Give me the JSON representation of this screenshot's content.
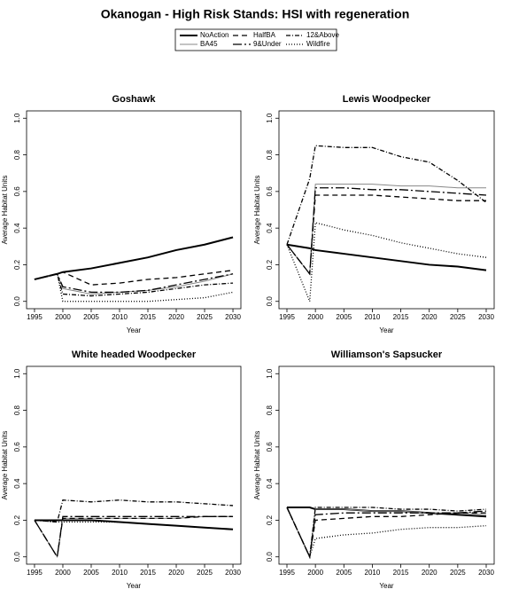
{
  "title": "Okanogan  - High Risk Stands: HSI with regeneration",
  "chart_data": [
    {
      "type": "line",
      "title": "Goshawk",
      "xlabel": "Year",
      "ylabel": "Average Habitat Units",
      "x": [
        1995,
        1999,
        2000,
        2005,
        2010,
        2015,
        2020,
        2025,
        2030
      ],
      "xlim": [
        1993.6,
        2031.4
      ],
      "ylim": [
        -0.04,
        1.04
      ],
      "xticks": [
        1995,
        2000,
        2005,
        2010,
        2015,
        2020,
        2025,
        2030
      ],
      "yticks": [
        {
          "value": 0,
          "label": "0.0"
        },
        0.2,
        0.4,
        0.6,
        0.8,
        {
          "value": 1,
          "label": "1.0"
        }
      ],
      "series": [
        {
          "name": "NoAction",
          "color": "#000000",
          "width": 2,
          "dash": "",
          "values": [
            0.12,
            0.15,
            0.16,
            0.18,
            0.21,
            0.24,
            0.28,
            0.31,
            0.35
          ]
        },
        {
          "name": "BA45",
          "color": "#888888",
          "width": 1,
          "dash": "",
          "values": [
            0.12,
            0.15,
            0.07,
            0.04,
            0.05,
            0.06,
            0.08,
            0.11,
            0.15
          ]
        },
        {
          "name": "HalfBA",
          "color": "#000000",
          "width": 1.3,
          "dash": "6,4",
          "values": [
            0.12,
            0.15,
            0.16,
            0.09,
            0.1,
            0.12,
            0.13,
            0.15,
            0.17
          ]
        },
        {
          "name": "9&Under",
          "color": "#000000",
          "width": 1.3,
          "dash": "10,3,2,3",
          "values": [
            0.12,
            0.15,
            0.08,
            0.05,
            0.05,
            0.06,
            0.09,
            0.12,
            0.15
          ]
        },
        {
          "name": "12&Above",
          "color": "#000000",
          "width": 1.3,
          "dash": "5,2,1,2",
          "values": [
            0.12,
            0.15,
            0.04,
            0.03,
            0.04,
            0.05,
            0.07,
            0.09,
            0.1
          ]
        },
        {
          "name": "Wildfire",
          "color": "#000000",
          "width": 1.3,
          "dash": "1,2",
          "values": [
            0.12,
            0.15,
            0.0,
            0.0,
            0.0,
            0.0,
            0.01,
            0.02,
            0.05
          ]
        }
      ]
    },
    {
      "type": "line",
      "title": "Lewis Woodpecker",
      "xlabel": "Year",
      "ylabel": "Average Habitat Units",
      "x": [
        1995,
        1999,
        2000,
        2005,
        2010,
        2015,
        2020,
        2025,
        2030
      ],
      "xlim": [
        1993.6,
        2031.4
      ],
      "ylim": [
        -0.04,
        1.04
      ],
      "xticks": [
        1995,
        2000,
        2005,
        2010,
        2015,
        2020,
        2025,
        2030
      ],
      "yticks": [
        {
          "value": 0,
          "label": "0.0"
        },
        0.2,
        0.4,
        0.6,
        0.8,
        {
          "value": 1,
          "label": "1.0"
        }
      ],
      "series": [
        {
          "name": "NoAction",
          "color": "#000000",
          "width": 2,
          "dash": "",
          "values": [
            0.31,
            0.29,
            0.28,
            0.26,
            0.24,
            0.22,
            0.2,
            0.19,
            0.17
          ]
        },
        {
          "name": "BA45",
          "color": "#888888",
          "width": 1,
          "dash": "",
          "values": [
            0.31,
            0.15,
            0.64,
            0.64,
            0.64,
            0.63,
            0.63,
            0.62,
            0.62
          ]
        },
        {
          "name": "HalfBA",
          "color": "#000000",
          "width": 1.3,
          "dash": "6,4",
          "values": [
            0.31,
            0.15,
            0.58,
            0.58,
            0.58,
            0.57,
            0.56,
            0.55,
            0.55
          ]
        },
        {
          "name": "9&Under",
          "color": "#000000",
          "width": 1.3,
          "dash": "10,3,2,3",
          "values": [
            0.31,
            0.15,
            0.62,
            0.62,
            0.61,
            0.61,
            0.6,
            0.59,
            0.58
          ]
        },
        {
          "name": "12&Above",
          "color": "#000000",
          "width": 1.3,
          "dash": "5,2,1,2",
          "values": [
            0.31,
            0.67,
            0.85,
            0.84,
            0.84,
            0.79,
            0.76,
            0.66,
            0.54
          ]
        },
        {
          "name": "Wildfire",
          "color": "#000000",
          "width": 1.3,
          "dash": "1,2",
          "values": [
            0.31,
            0.0,
            0.43,
            0.39,
            0.36,
            0.32,
            0.29,
            0.26,
            0.24
          ]
        }
      ]
    },
    {
      "type": "line",
      "title": "White headed Woodpecker",
      "xlabel": "Year",
      "ylabel": "Average Habitat Units",
      "x": [
        1995,
        1999,
        2000,
        2005,
        2010,
        2015,
        2020,
        2025,
        2030
      ],
      "xlim": [
        1993.6,
        2031.4
      ],
      "ylim": [
        -0.04,
        1.04
      ],
      "xticks": [
        1995,
        2000,
        2005,
        2010,
        2015,
        2020,
        2025,
        2030
      ],
      "yticks": [
        {
          "value": 0,
          "label": "0.0"
        },
        0.2,
        0.4,
        0.6,
        0.8,
        {
          "value": 1,
          "label": "1.0"
        }
      ],
      "series": [
        {
          "name": "NoAction",
          "color": "#000000",
          "width": 2,
          "dash": "",
          "values": [
            0.2,
            0.2,
            0.2,
            0.2,
            0.19,
            0.18,
            0.17,
            0.16,
            0.15
          ]
        },
        {
          "name": "BA45",
          "color": "#888888",
          "width": 1,
          "dash": "",
          "values": [
            0.2,
            0.0,
            0.21,
            0.21,
            0.21,
            0.21,
            0.21,
            0.22,
            0.22
          ]
        },
        {
          "name": "HalfBA",
          "color": "#000000",
          "width": 1.3,
          "dash": "6,4",
          "values": [
            0.2,
            0.0,
            0.21,
            0.21,
            0.21,
            0.21,
            0.21,
            0.22,
            0.22
          ]
        },
        {
          "name": "9&Under",
          "color": "#000000",
          "width": 1.3,
          "dash": "10,3,2,3",
          "values": [
            0.2,
            0.0,
            0.22,
            0.22,
            0.22,
            0.22,
            0.22,
            0.22,
            0.22
          ]
        },
        {
          "name": "12&Above",
          "color": "#000000",
          "width": 1.3,
          "dash": "5,2,1,2",
          "values": [
            0.2,
            0.19,
            0.31,
            0.3,
            0.31,
            0.3,
            0.3,
            0.29,
            0.28
          ]
        },
        {
          "name": "Wildfire",
          "color": "#000000",
          "width": 1.3,
          "dash": "1,2",
          "values": [
            0.2,
            0.19,
            0.19,
            0.19,
            0.19,
            0.18,
            0.17,
            0.16,
            0.15
          ]
        }
      ]
    },
    {
      "type": "line",
      "title": "Williamson's Sapsucker",
      "xlabel": "Year",
      "ylabel": "Average Habitat Units",
      "x": [
        1995,
        1999,
        2000,
        2005,
        2010,
        2015,
        2020,
        2025,
        2030
      ],
      "xlim": [
        1993.6,
        2031.4
      ],
      "ylim": [
        -0.04,
        1.04
      ],
      "xticks": [
        1995,
        2000,
        2005,
        2010,
        2015,
        2020,
        2025,
        2030
      ],
      "yticks": [
        {
          "value": 0,
          "label": "0.0"
        },
        0.2,
        0.4,
        0.6,
        0.8,
        {
          "value": 1,
          "label": "1.0"
        }
      ],
      "series": [
        {
          "name": "NoAction",
          "color": "#000000",
          "width": 2,
          "dash": "",
          "values": [
            0.27,
            0.27,
            0.26,
            0.26,
            0.25,
            0.25,
            0.24,
            0.23,
            0.22
          ]
        },
        {
          "name": "BA45",
          "color": "#888888",
          "width": 1,
          "dash": "",
          "values": [
            0.27,
            0.0,
            0.26,
            0.26,
            0.25,
            0.25,
            0.24,
            0.24,
            0.23
          ]
        },
        {
          "name": "HalfBA",
          "color": "#000000",
          "width": 1.3,
          "dash": "6,4",
          "values": [
            0.27,
            0.0,
            0.2,
            0.21,
            0.22,
            0.22,
            0.23,
            0.24,
            0.24
          ]
        },
        {
          "name": "9&Under",
          "color": "#000000",
          "width": 1.3,
          "dash": "10,3,2,3",
          "values": [
            0.27,
            0.0,
            0.23,
            0.24,
            0.24,
            0.24,
            0.24,
            0.24,
            0.25
          ]
        },
        {
          "name": "12&Above",
          "color": "#000000",
          "width": 1.3,
          "dash": "5,2,1,2",
          "values": [
            0.27,
            0.0,
            0.27,
            0.27,
            0.27,
            0.26,
            0.26,
            0.25,
            0.26
          ]
        },
        {
          "name": "Wildfire",
          "color": "#000000",
          "width": 1.3,
          "dash": "1,2",
          "values": [
            0.27,
            0.0,
            0.1,
            0.12,
            0.13,
            0.15,
            0.16,
            0.16,
            0.17
          ]
        }
      ]
    }
  ]
}
